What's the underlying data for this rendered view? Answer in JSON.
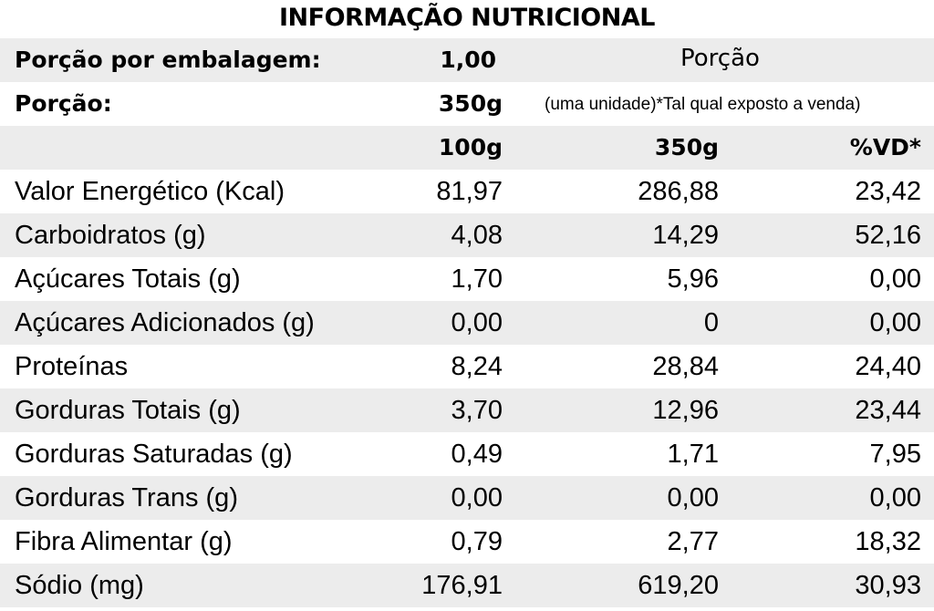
{
  "title": "INFORMAÇÃO NUTRICIONAL",
  "serving": {
    "per_package_label": "Porção por embalagem:",
    "per_package_value": "1,00",
    "portion_heading": "Porção",
    "portion_label": "Porção:",
    "portion_value": "350g",
    "portion_note": "(uma unidade)*Tal qual exposto a venda)"
  },
  "columns": [
    "100g",
    "350g",
    "%VD*"
  ],
  "rows": [
    {
      "label": "Valor Energético (Kcal)",
      "per100": "81,97",
      "per_portion": "286,88",
      "vd": "23,42"
    },
    {
      "label": "Carboidratos (g)",
      "per100": "4,08",
      "per_portion": "14,29",
      "vd": "52,16"
    },
    {
      "label": "Açúcares Totais (g)",
      "per100": "1,70",
      "per_portion": "5,96",
      "vd": "0,00"
    },
    {
      "label": "Açúcares Adicionados (g)",
      "per100": "0,00",
      "per_portion": "0",
      "vd": "0,00"
    },
    {
      "label": "Proteínas",
      "per100": "8,24",
      "per_portion": "28,84",
      "vd": "24,40"
    },
    {
      "label": "Gorduras Totais (g)",
      "per100": "3,70",
      "per_portion": "12,96",
      "vd": "23,44"
    },
    {
      "label": "Gorduras Saturadas (g)",
      "per100": "0,49",
      "per_portion": "1,71",
      "vd": "7,95"
    },
    {
      "label": "Gorduras Trans (g)",
      "per100": "0,00",
      "per_portion": "0,00",
      "vd": "0,00"
    },
    {
      "label": "Fibra Alimentar (g)",
      "per100": "0,79",
      "per_portion": "2,77",
      "vd": "18,32"
    },
    {
      "label": "Sódio (mg)",
      "per100": "176,91",
      "per_portion": "619,20",
      "vd": "30,93"
    }
  ]
}
